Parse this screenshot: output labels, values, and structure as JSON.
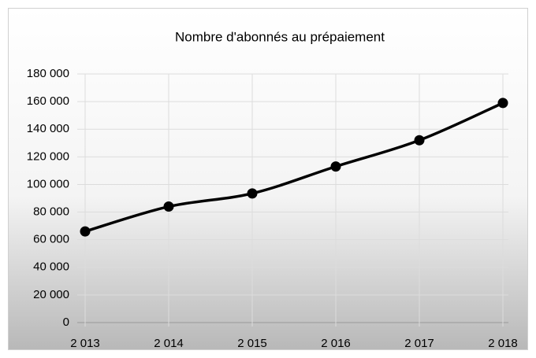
{
  "chart_data": {
    "type": "line",
    "title": "Nombre d'abonnés au prépaiement",
    "categories": [
      "2 013",
      "2 014",
      "2 015",
      "2 016",
      "2 017",
      "2 018"
    ],
    "series": [
      {
        "name": "Nombre d'abonnés au prépaiement",
        "color": "#000000",
        "values": [
          66000,
          84000,
          93500,
          113000,
          132000,
          159000
        ]
      }
    ],
    "ylim": [
      0,
      180000
    ],
    "yticks": [
      0,
      {
        "value": 20000,
        "label": "20 000"
      },
      {
        "value": 40000,
        "label": "40 000"
      },
      {
        "value": 60000,
        "label": "60 000"
      },
      {
        "value": 80000,
        "label": "80 000"
      },
      {
        "value": 100000,
        "label": "100 000"
      },
      {
        "value": 120000,
        "label": "120 000"
      },
      {
        "value": 140000,
        "label": "140 000"
      },
      {
        "value": 160000,
        "label": "160 000"
      },
      {
        "value": 180000,
        "label": "180 000"
      }
    ],
    "grid": true,
    "smooth": true
  }
}
